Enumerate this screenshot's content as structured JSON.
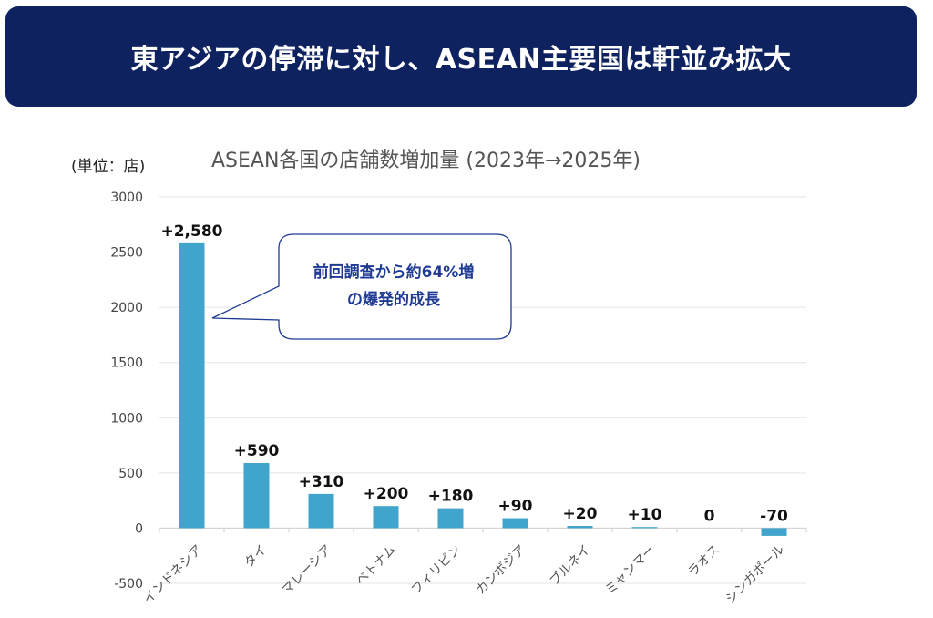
{
  "banner": {
    "title": "東アジアの停滞に対し、ASEAN主要国は軒並み拡大"
  },
  "unit_label": "(単位：店)",
  "callout": {
    "line1": "前回調査から約64%増",
    "line2": "の爆発的成長"
  },
  "colors": {
    "banner_bg": "#0e2260",
    "bar": "#41a4cc",
    "callout_border": "#1f3a93"
  },
  "chart_data": {
    "type": "bar",
    "title": "ASEAN各国の店舗数増加量 (2023年→2025年)",
    "xlabel": "",
    "ylabel": "",
    "ylim": [
      -500,
      3000
    ],
    "yticks": [
      -500,
      0,
      500,
      1000,
      1500,
      2000,
      2500,
      3000
    ],
    "categories": [
      "インドネシア",
      "タイ",
      "マレーシア",
      "ベトナム",
      "フィリピン",
      "カンボジア",
      "ブルネイ",
      "ミャンマー",
      "ラオス",
      "シンガポール"
    ],
    "values": [
      2580,
      590,
      310,
      200,
      180,
      90,
      20,
      10,
      0,
      -70
    ],
    "data_labels": [
      "+2,580",
      "+590",
      "+310",
      "+200",
      "+180",
      "+90",
      "+20",
      "+10",
      "0",
      "-70"
    ],
    "grid": true
  }
}
